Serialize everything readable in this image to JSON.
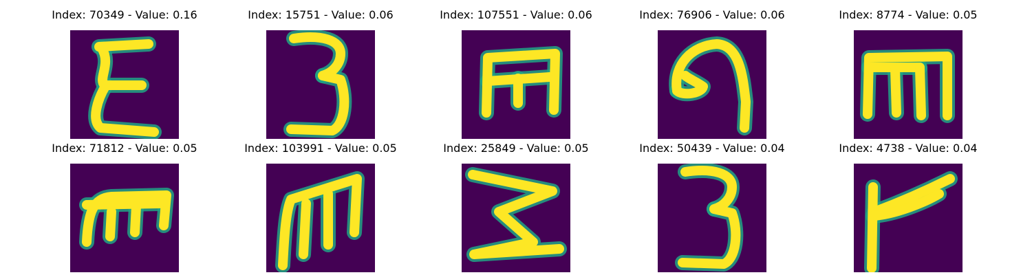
{
  "figure": {
    "background_color": "#440154",
    "stroke_color": "#fde725",
    "edge_color": "#21a585",
    "tiles": [
      {
        "title": "Index: 70349 - Value: 0.16",
        "glyph": "sigma-like-e-glyph"
      },
      {
        "title": "Index: 15751 - Value: 0.06",
        "glyph": "three-glyph"
      },
      {
        "title": "Index: 107551 - Value: 0.06",
        "glyph": "rotated-m-glyph"
      },
      {
        "title": "Index: 76906 - Value: 0.06",
        "glyph": "curled-hook-glyph"
      },
      {
        "title": "Index: 8774 - Value: 0.05",
        "glyph": "m-with-bar-glyph"
      },
      {
        "title": "Index: 71812 - Value: 0.05",
        "glyph": "cursive-m-glyph"
      },
      {
        "title": "Index: 103991 - Value: 0.05",
        "glyph": "m-glyph"
      },
      {
        "title": "Index: 25849 - Value: 0.05",
        "glyph": "rotated-w-glyph"
      },
      {
        "title": "Index: 50439 - Value: 0.04",
        "glyph": "three-glyph"
      },
      {
        "title": "Index: 4738 - Value: 0.04",
        "glyph": "r-glyph"
      }
    ]
  }
}
